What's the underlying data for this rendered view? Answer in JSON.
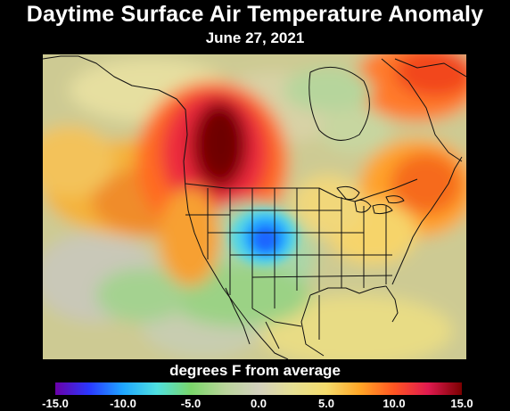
{
  "title": "Daytime Surface Air Temperature Anomaly",
  "date": "June 27, 2021",
  "legend": {
    "label": "degrees F from average",
    "min": -15.0,
    "max": 15.0,
    "ticks": [
      "-15.0",
      "-10.0",
      "-5.0",
      "0.0",
      "5.0",
      "10.0",
      "15.0"
    ],
    "colors": [
      "#6a00a8",
      "#2a38ff",
      "#1fa6ff",
      "#4fe0e0",
      "#7ad66a",
      "#b9d49a",
      "#d2d0bd",
      "#e5df93",
      "#f5dc6c",
      "#ffa526",
      "#ff5522",
      "#e01a50",
      "#7a0000"
    ]
  },
  "map": {
    "projection": "north-america-lambert",
    "features": {
      "heat_dome_pacific_northwest": {
        "anomaly_f": 15.0
      },
      "warm_anomaly_northeast": {
        "anomaly_f": 9.0
      },
      "cold_anomaly_central_plains": {
        "anomaly_f": -9.0
      },
      "warm_anomaly_hudson_bay": {
        "anomaly_f": 8.0
      },
      "cool_anomaly_mexico_pacific": {
        "anomaly_f": -3.0
      }
    }
  }
}
